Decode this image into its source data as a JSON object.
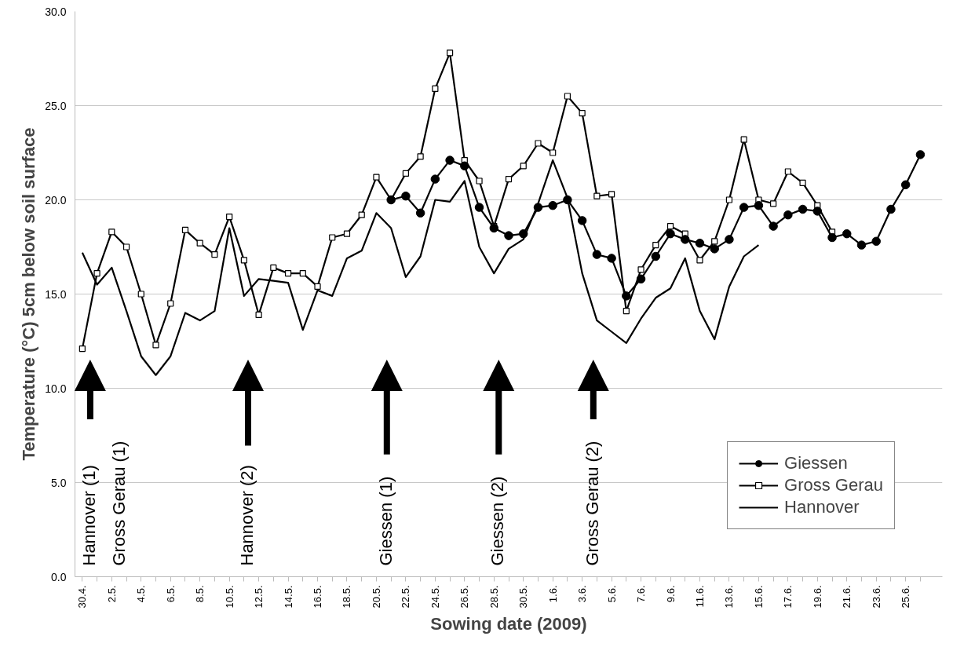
{
  "chart_data": {
    "type": "line",
    "xlabel": "Sowing date (2009)",
    "ylabel": "Temperature (°C) 5cm below soil surface",
    "x": [
      "2009-04-30",
      "2009-05-01",
      "2009-05-02",
      "2009-05-03",
      "2009-05-04",
      "2009-05-05",
      "2009-05-06",
      "2009-05-07",
      "2009-05-08",
      "2009-05-09",
      "2009-05-10",
      "2009-05-11",
      "2009-05-12",
      "2009-05-13",
      "2009-05-14",
      "2009-05-15",
      "2009-05-16",
      "2009-05-17",
      "2009-05-18",
      "2009-05-19",
      "2009-05-20",
      "2009-05-21",
      "2009-05-22",
      "2009-05-23",
      "2009-05-24",
      "2009-05-25",
      "2009-05-26",
      "2009-05-27",
      "2009-05-28",
      "2009-05-29",
      "2009-05-30",
      "2009-05-31",
      "2009-06-01",
      "2009-06-02",
      "2009-06-03",
      "2009-06-04",
      "2009-06-05",
      "2009-06-06",
      "2009-06-07",
      "2009-06-08",
      "2009-06-09",
      "2009-06-10",
      "2009-06-11",
      "2009-06-12",
      "2009-06-13",
      "2009-06-14",
      "2009-06-15",
      "2009-06-16",
      "2009-06-17",
      "2009-06-18",
      "2009-06-19",
      "2009-06-20",
      "2009-06-21",
      "2009-06-22",
      "2009-06-23",
      "2009-06-24",
      "2009-06-25",
      "2009-06-26"
    ],
    "series": [
      {
        "name": "Giessen",
        "color": "#000000",
        "marker": "circle",
        "values": [
          null,
          null,
          null,
          null,
          null,
          null,
          null,
          null,
          null,
          null,
          null,
          null,
          null,
          null,
          null,
          null,
          null,
          null,
          null,
          null,
          null,
          20.0,
          20.2,
          19.3,
          21.1,
          22.1,
          21.8,
          19.6,
          18.5,
          18.1,
          18.2,
          19.6,
          19.7,
          20.0,
          18.9,
          17.1,
          16.9,
          14.9,
          15.8,
          17.0,
          18.2,
          17.9,
          17.7,
          17.4,
          17.9,
          19.6,
          19.7,
          18.6,
          19.2,
          19.5,
          19.4,
          18.0,
          18.2,
          17.6,
          17.8,
          19.5,
          20.8,
          22.4
        ]
      },
      {
        "name": "Gross Gerau",
        "color": "#000000",
        "marker": "square",
        "values": [
          12.1,
          16.1,
          18.3,
          17.5,
          15.0,
          12.3,
          14.5,
          18.4,
          17.7,
          17.1,
          19.1,
          16.8,
          13.9,
          16.4,
          16.1,
          16.1,
          15.4,
          18.0,
          18.2,
          19.2,
          21.2,
          20.0,
          21.4,
          22.3,
          25.9,
          27.8,
          22.1,
          21.0,
          18.6,
          21.1,
          21.8,
          23.0,
          22.5,
          25.5,
          24.6,
          20.2,
          20.3,
          14.1,
          16.3,
          17.6,
          18.6,
          18.2,
          16.8,
          17.8,
          20.0,
          23.2,
          20.0,
          19.8,
          21.5,
          20.9,
          19.7,
          18.3,
          null,
          null,
          null,
          null,
          null,
          null
        ]
      },
      {
        "name": "Hannover",
        "color": "#000000",
        "marker": "none",
        "values": [
          17.2,
          15.5,
          16.4,
          14.1,
          11.7,
          10.7,
          11.7,
          14.0,
          13.6,
          14.1,
          18.5,
          14.9,
          15.8,
          15.7,
          15.6,
          13.1,
          15.2,
          14.9,
          16.9,
          17.3,
          19.3,
          18.5,
          15.9,
          17.0,
          20.0,
          19.9,
          21.0,
          17.5,
          16.1,
          17.4,
          17.9,
          19.8,
          22.1,
          20.1,
          16.1,
          13.6,
          13.0,
          12.4,
          13.7,
          14.8,
          15.3,
          16.9,
          14.1,
          12.6,
          15.4,
          17.0,
          17.6,
          null,
          null,
          null,
          null,
          null,
          null,
          null,
          null,
          null,
          null,
          null
        ]
      }
    ],
    "xlim": [
      "2009-04-29T12:00",
      "2009-06-27T12:00"
    ],
    "xticks": [
      {
        "value": "2009-04-30",
        "label": "30.4."
      },
      {
        "value": "2009-05-01",
        "label": null
      },
      {
        "value": "2009-05-02",
        "label": "2.5."
      },
      {
        "value": "2009-05-03",
        "label": null
      },
      {
        "value": "2009-05-04",
        "label": "4.5."
      },
      {
        "value": "2009-05-05",
        "label": null
      },
      {
        "value": "2009-05-06",
        "label": "6.5."
      },
      {
        "value": "2009-05-07",
        "label": null
      },
      {
        "value": "2009-05-08",
        "label": "8.5."
      },
      {
        "value": "2009-05-09",
        "label": null
      },
      {
        "value": "2009-05-10",
        "label": "10.5."
      },
      {
        "value": "2009-05-11",
        "label": null
      },
      {
        "value": "2009-05-12",
        "label": "12.5."
      },
      {
        "value": "2009-05-13",
        "label": null
      },
      {
        "value": "2009-05-14",
        "label": "14.5."
      },
      {
        "value": "2009-05-15",
        "label": null
      },
      {
        "value": "2009-05-16",
        "label": "16.5."
      },
      {
        "value": "2009-05-17",
        "label": null
      },
      {
        "value": "2009-05-18",
        "label": "18.5."
      },
      {
        "value": "2009-05-19",
        "label": null
      },
      {
        "value": "2009-05-20",
        "label": "20.5."
      },
      {
        "value": "2009-05-21",
        "label": null
      },
      {
        "value": "2009-05-22",
        "label": "22.5."
      },
      {
        "value": "2009-05-23",
        "label": null
      },
      {
        "value": "2009-05-24",
        "label": "24.5."
      },
      {
        "value": "2009-05-25",
        "label": null
      },
      {
        "value": "2009-05-26",
        "label": "26.5."
      },
      {
        "value": "2009-05-27",
        "label": null
      },
      {
        "value": "2009-05-28",
        "label": "28.5."
      },
      {
        "value": "2009-05-29",
        "label": null
      },
      {
        "value": "2009-05-30",
        "label": "30.5."
      },
      {
        "value": "2009-05-31",
        "label": null
      },
      {
        "value": "2009-06-01",
        "label": "1.6."
      },
      {
        "value": "2009-06-02",
        "label": null
      },
      {
        "value": "2009-06-03",
        "label": "3.6."
      },
      {
        "value": "2009-06-04",
        "label": null
      },
      {
        "value": "2009-06-05",
        "label": "5.6."
      },
      {
        "value": "2009-06-06",
        "label": null
      },
      {
        "value": "2009-06-07",
        "label": "7.6."
      },
      {
        "value": "2009-06-08",
        "label": null
      },
      {
        "value": "2009-06-09",
        "label": "9.6."
      },
      {
        "value": "2009-06-10",
        "label": null
      },
      {
        "value": "2009-06-11",
        "label": "11.6."
      },
      {
        "value": "2009-06-12",
        "label": null
      },
      {
        "value": "2009-06-13",
        "label": "13.6."
      },
      {
        "value": "2009-06-14",
        "label": null
      },
      {
        "value": "2009-06-15",
        "label": "15.6."
      },
      {
        "value": "2009-06-16",
        "label": null
      },
      {
        "value": "2009-06-17",
        "label": "17.6."
      },
      {
        "value": "2009-06-18",
        "label": null
      },
      {
        "value": "2009-06-19",
        "label": "19.6."
      },
      {
        "value": "2009-06-20",
        "label": null
      },
      {
        "value": "2009-06-21",
        "label": "21.6."
      },
      {
        "value": "2009-06-22",
        "label": null
      },
      {
        "value": "2009-06-23",
        "label": "23.6."
      },
      {
        "value": "2009-06-24",
        "label": null
      },
      {
        "value": "2009-06-25",
        "label": "25.6."
      },
      {
        "value": "2009-06-26",
        "label": null
      }
    ],
    "ylim": [
      0,
      30
    ],
    "yticks": [
      {
        "value": 0,
        "label": "0.0"
      },
      {
        "value": 5,
        "label": "5.0"
      },
      {
        "value": 10,
        "label": "10.0"
      },
      {
        "value": 15,
        "label": "15.0"
      },
      {
        "value": 20,
        "label": "20.0"
      },
      {
        "value": 25,
        "label": "25.0"
      },
      {
        "value": 30,
        "label": "30.0"
      }
    ],
    "grid": "y",
    "legend": "bottom right",
    "annotations": [
      "Hannover (1)",
      "Gross Gerau (1)",
      "Hannover (2)",
      "Giessen (1)",
      "Giessen (2)",
      "Gross Gerau (2)"
    ]
  }
}
